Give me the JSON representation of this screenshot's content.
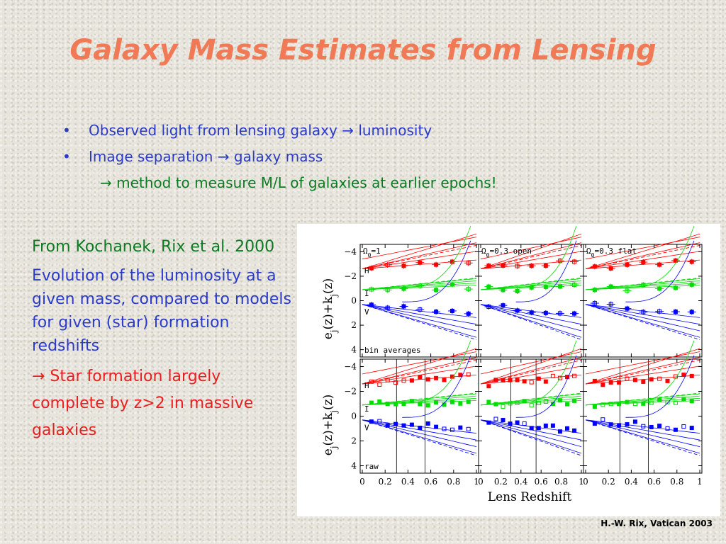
{
  "slide": {
    "title": "Galaxy Mass Estimates from Lensing",
    "bullets": [
      "Observed light from lensing galaxy → luminosity",
      "Image separation → galaxy mass"
    ],
    "bullet_glyph": "•",
    "sub_bullet": "→ method to measure M/L of galaxies at earlier epochs!",
    "left_text": {
      "source": "From Kochanek, Rix et al. 2000",
      "description": "Evolution of the luminosity at a given mass, compared to models for given (star) formation redshifts",
      "conclusion": "→ Star formation largely complete by z>2 in massive galaxies"
    },
    "footer": "H.-W. Rix, Vatican 2003",
    "colors": {
      "title": "#f07a55",
      "bullets": "#2b3bc8",
      "green": "#0d7a22",
      "red": "#ea1e1e"
    }
  },
  "figure": {
    "xlabel": "Lens Redshift",
    "ylabel_main": "e",
    "ylabel_sub1": "j",
    "ylabel_mid": "(z)+k",
    "ylabel_sub2": "j",
    "ylabel_end": "(z)",
    "x_ticks": [
      "0",
      "0.2",
      "0.4",
      "0.6",
      "0.8",
      "1"
    ],
    "y_ticks": [
      "−4",
      "−2",
      "0",
      "2",
      "4"
    ],
    "panels": [
      {
        "row": "top",
        "col": 0,
        "label": "Ω",
        "label_sub": "0",
        "label_rest": "=1"
      },
      {
        "row": "top",
        "col": 1,
        "label": "Ω",
        "label_sub": "0",
        "label_rest": "=0.3 open"
      },
      {
        "row": "top",
        "col": 2,
        "label": "Ω",
        "label_sub": "0",
        "label_rest": "=0.3 flat"
      }
    ],
    "band_labels": [
      "H",
      "I",
      "V"
    ],
    "row_labels": [
      "bin averages",
      "raw"
    ],
    "series_colors": {
      "H": "#ff0000",
      "I": "#00dd00",
      "V": "#0000ff"
    }
  }
}
